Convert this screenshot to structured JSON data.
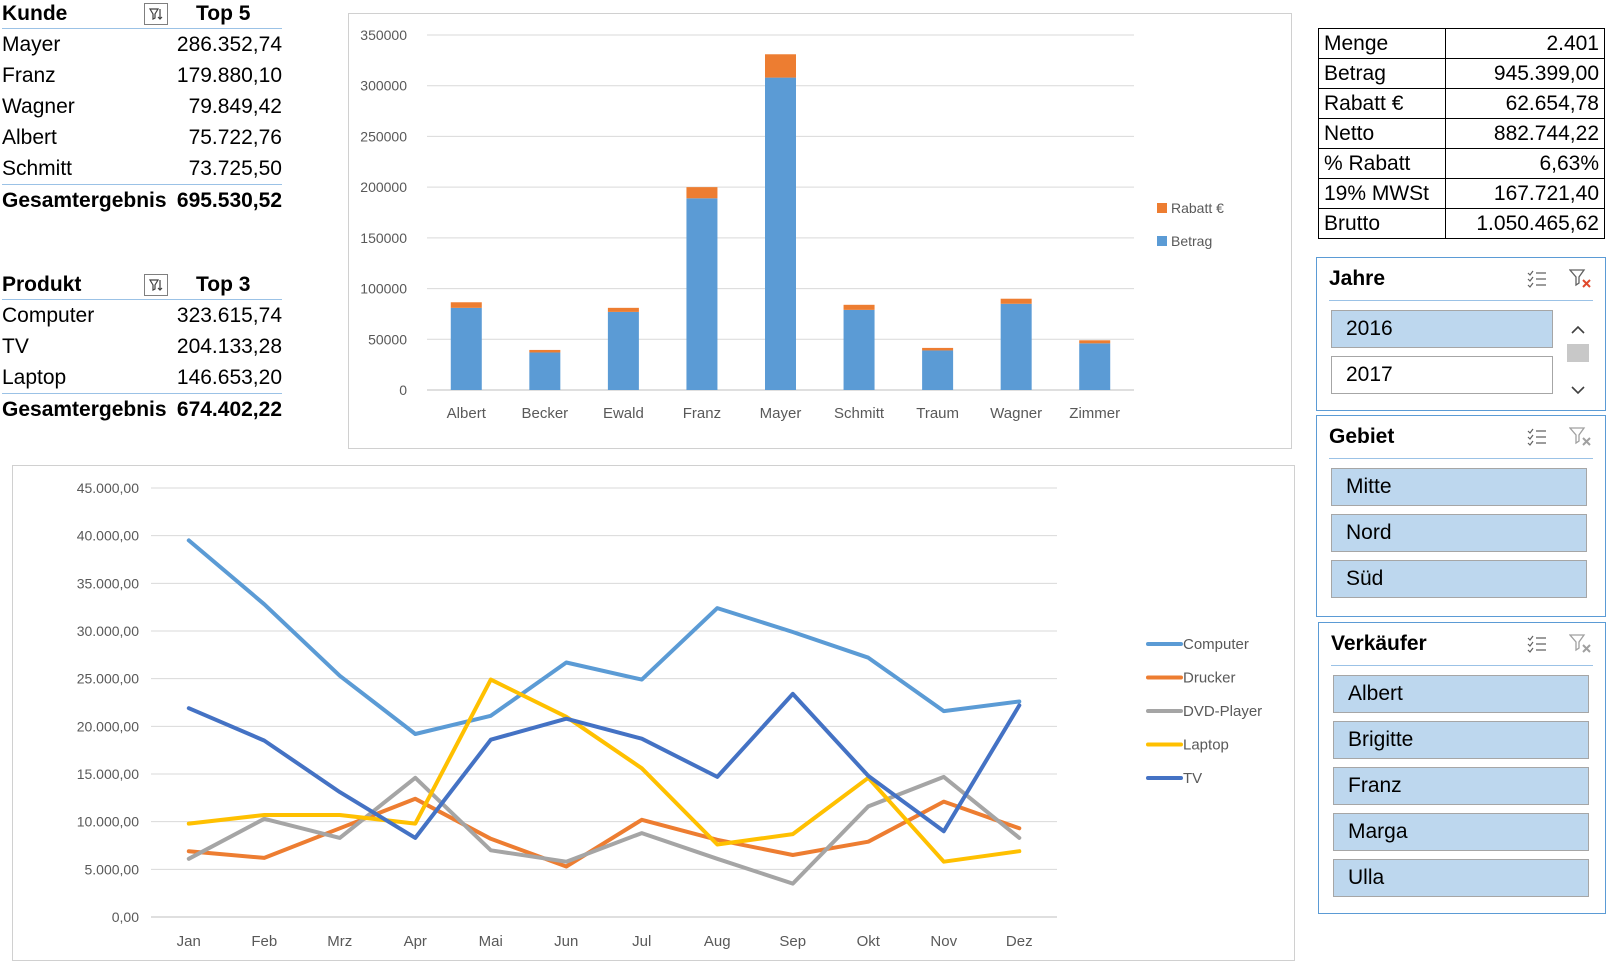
{
  "kunde_table": {
    "header_label": "Kunde",
    "header_top": "Top 5",
    "rows": [
      {
        "name": "Mayer",
        "value": "286.352,74"
      },
      {
        "name": "Franz",
        "value": "179.880,10"
      },
      {
        "name": "Wagner",
        "value": "79.849,42"
      },
      {
        "name": "Albert",
        "value": "75.722,76"
      },
      {
        "name": "Schmitt",
        "value": "73.725,50"
      }
    ],
    "total_label": "Gesamtergebnis",
    "total_value": "695.530,52"
  },
  "produkt_table": {
    "header_label": "Produkt",
    "header_top": "Top 3",
    "rows": [
      {
        "name": "Computer",
        "value": "323.615,74"
      },
      {
        "name": "TV",
        "value": "204.133,28"
      },
      {
        "name": "Laptop",
        "value": "146.653,20"
      }
    ],
    "total_label": "Gesamtergebnis",
    "total_value": "674.402,22"
  },
  "summary": [
    {
      "label": "Menge",
      "value": "2.401"
    },
    {
      "label": "Betrag",
      "value": "945.399,00"
    },
    {
      "label": "Rabatt  €",
      "value": "62.654,78"
    },
    {
      "label": "Netto",
      "value": "882.744,22"
    },
    {
      "label": "% Rabatt",
      "value": "6,63%"
    },
    {
      "label": "19% MWSt",
      "value": "167.721,40"
    },
    {
      "label": "Brutto",
      "value": "1.050.465,62"
    }
  ],
  "slicers": {
    "jahre": {
      "title": "Jahre",
      "items": [
        "2016",
        "2017"
      ],
      "selected": [
        "2016"
      ]
    },
    "gebiet": {
      "title": "Gebiet",
      "items": [
        "Mitte",
        "Nord",
        "Süd"
      ],
      "selected": [
        "Mitte",
        "Nord",
        "Süd"
      ]
    },
    "verkaeufer": {
      "title": "Verkäufer",
      "items": [
        "Albert",
        "Brigitte",
        "Franz",
        "Marga",
        "Ulla"
      ],
      "selected": [
        "Albert",
        "Brigitte",
        "Franz",
        "Marga",
        "Ulla"
      ]
    }
  },
  "icons": {
    "multiselect": "multi-select-icon",
    "clear_filter": "clear-filter-icon",
    "sort_filter": "sort-filter-icon",
    "scroll_up": "chevron-up-icon",
    "scroll_down": "chevron-down-icon"
  },
  "chart_data": [
    {
      "type": "bar",
      "stacked": true,
      "categories": [
        "Albert",
        "Becker",
        "Ewald",
        "Franz",
        "Mayer",
        "Schmitt",
        "Traum",
        "Wagner",
        "Zimmer"
      ],
      "series": [
        {
          "name": "Betrag",
          "color": "#5b9bd5",
          "values": [
            81000,
            37000,
            77000,
            189000,
            308000,
            79000,
            39000,
            85000,
            46000
          ]
        },
        {
          "name": "Rabatt  €",
          "color": "#ed7d31",
          "values": [
            5500,
            2500,
            4000,
            11000,
            23000,
            5000,
            2500,
            5000,
            3000
          ]
        }
      ],
      "ylim": [
        0,
        350000
      ],
      "yticks": [
        "0",
        "50000",
        "100000",
        "150000",
        "200000",
        "250000",
        "300000",
        "350000"
      ],
      "legend": "right",
      "grid": true
    },
    {
      "type": "line",
      "categories": [
        "Jan",
        "Feb",
        "Mrz",
        "Apr",
        "Mai",
        "Jun",
        "Jul",
        "Aug",
        "Sep",
        "Okt",
        "Nov",
        "Dez"
      ],
      "series": [
        {
          "name": "Computer",
          "color": "#5b9bd5",
          "values": [
            39500,
            32800,
            25300,
            19200,
            21100,
            26700,
            24900,
            32400,
            29900,
            27200,
            21600,
            22600
          ]
        },
        {
          "name": "Drucker",
          "color": "#ed7d31",
          "values": [
            6900,
            6200,
            9300,
            12400,
            8200,
            5300,
            10200,
            8100,
            6500,
            7900,
            12100,
            9300
          ]
        },
        {
          "name": "DVD-Player",
          "color": "#a5a5a5",
          "values": [
            6100,
            10300,
            8300,
            14600,
            7000,
            5800,
            8800,
            6100,
            3500,
            11600,
            14700,
            8300
          ]
        },
        {
          "name": "Laptop",
          "color": "#ffc000",
          "values": [
            9800,
            10700,
            10700,
            9800,
            24900,
            21000,
            15600,
            7600,
            8700,
            14600,
            5800,
            6900
          ]
        },
        {
          "name": "TV",
          "color": "#4472c4",
          "values": [
            21900,
            18500,
            13100,
            8300,
            18600,
            20800,
            18700,
            14700,
            23400,
            14800,
            9000,
            22200
          ]
        }
      ],
      "ylim": [
        0,
        45000
      ],
      "yticks": [
        "0,00",
        "5.000,00",
        "10.000,00",
        "15.000,00",
        "20.000,00",
        "25.000,00",
        "30.000,00",
        "35.000,00",
        "40.000,00",
        "45.000,00"
      ],
      "legend": "right",
      "grid": true
    }
  ]
}
